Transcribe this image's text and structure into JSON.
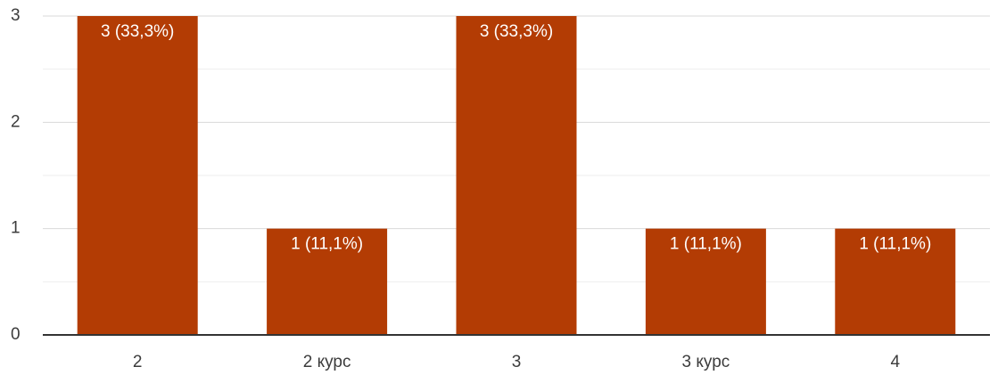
{
  "colors": {
    "bar": "#b33c04",
    "grid_major": "#d9d9d9",
    "grid_minor": "#eeeeee",
    "axis": "#333333",
    "bar_label": "#ffffff",
    "text": "#3c3c3c"
  },
  "chart_data": {
    "type": "bar",
    "categories": [
      "2",
      "2 курс",
      "3",
      "3 курс",
      "4"
    ],
    "values": [
      3,
      1,
      3,
      1,
      1
    ],
    "data_labels": [
      "3 (33,3%)",
      "1 (11,1%)",
      "3 (33,3%)",
      "1 (11,1%)",
      "1 (11,1%)"
    ],
    "y_ticks": [
      "0",
      "1",
      "2",
      "3"
    ],
    "ylim": [
      0,
      3
    ],
    "grid": true,
    "title": "",
    "xlabel": "",
    "ylabel": ""
  }
}
